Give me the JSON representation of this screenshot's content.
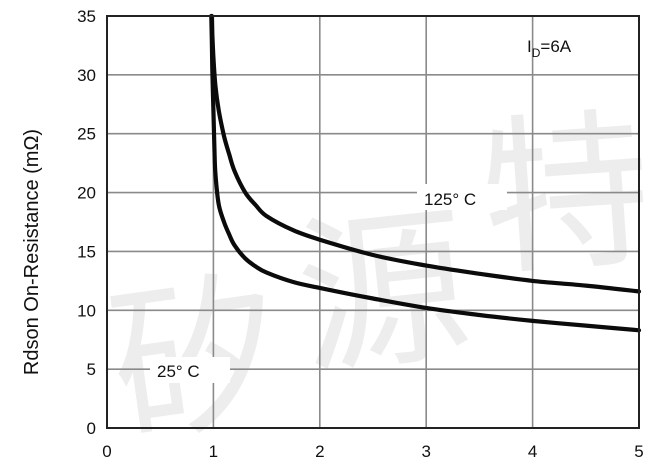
{
  "chart_data": {
    "type": "line",
    "title": "",
    "xlabel": "",
    "ylabel": "Rdson On-Resistance (mΩ)",
    "xlim": [
      0,
      5
    ],
    "ylim": [
      0,
      35
    ],
    "x_ticks": [
      "0",
      "1",
      "2",
      "3",
      "4",
      "5"
    ],
    "y_ticks": [
      "0",
      "5",
      "10",
      "15",
      "20",
      "25",
      "30",
      "35"
    ],
    "grid": true,
    "annotation": "ID=6A",
    "annotation_main": "I",
    "annotation_sub": "D",
    "annotation_tail": "=6A",
    "series": [
      {
        "name": "125° C",
        "x": [
          0.985,
          0.99,
          1.0,
          1.02,
          1.05,
          1.1,
          1.15,
          1.2,
          1.3,
          1.4,
          1.5,
          1.75,
          2.0,
          2.5,
          3.0,
          3.5,
          4.0,
          4.5,
          5.0
        ],
        "y": [
          35.0,
          33.5,
          31.5,
          29.0,
          27.0,
          24.8,
          23.2,
          21.8,
          20.0,
          18.9,
          18.0,
          16.8,
          16.0,
          14.7,
          13.8,
          13.1,
          12.5,
          12.1,
          11.6
        ]
      },
      {
        "name": "25° C",
        "x": [
          0.98,
          0.985,
          0.99,
          1.0,
          1.01,
          1.02,
          1.05,
          1.1,
          1.15,
          1.2,
          1.3,
          1.4,
          1.5,
          1.75,
          2.0,
          2.5,
          3.0,
          3.5,
          4.0,
          4.5,
          5.0
        ],
        "y": [
          35.0,
          33.0,
          30.5,
          27.0,
          23.5,
          21.5,
          19.0,
          17.5,
          16.4,
          15.5,
          14.4,
          13.7,
          13.2,
          12.4,
          11.9,
          11.0,
          10.2,
          9.6,
          9.1,
          8.7,
          8.3
        ]
      }
    ],
    "watermark": [
      "矽",
      "源",
      "特"
    ]
  }
}
